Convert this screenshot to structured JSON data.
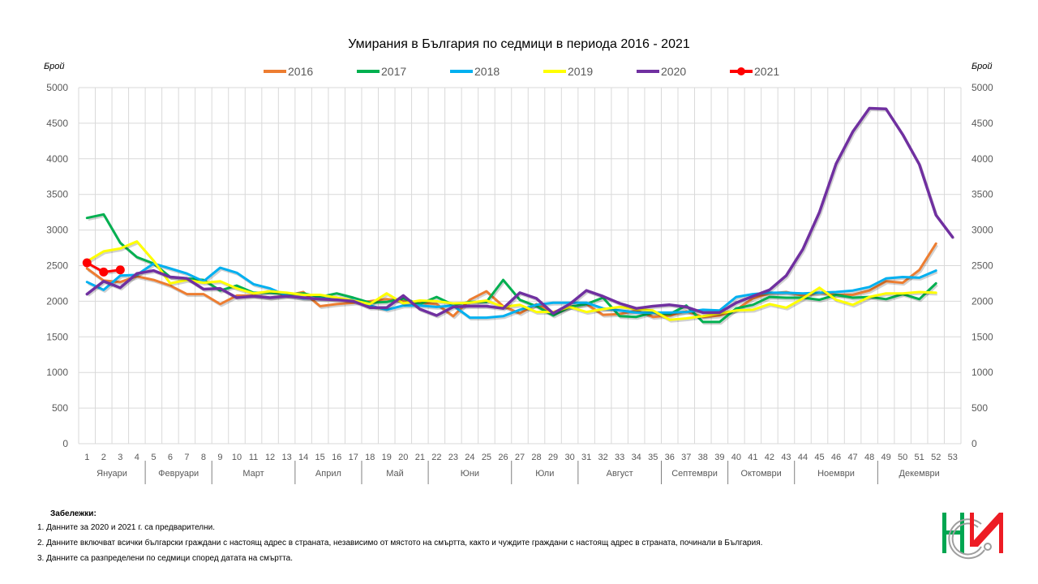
{
  "chart_data": {
    "type": "line",
    "title": "Умирания в България по седмици в периода 2016 - 2021",
    "ylabel_left": "Брой",
    "ylabel_right": "Брой",
    "ylim": [
      0,
      5000
    ],
    "yticks": [
      0,
      500,
      1000,
      1500,
      2000,
      2500,
      3000,
      3500,
      4000,
      4500,
      5000
    ],
    "grid": true,
    "legend_position": "top",
    "x": [
      1,
      2,
      3,
      4,
      5,
      6,
      7,
      8,
      9,
      10,
      11,
      12,
      13,
      14,
      15,
      16,
      17,
      18,
      19,
      20,
      21,
      22,
      23,
      24,
      25,
      26,
      27,
      28,
      29,
      30,
      31,
      32,
      33,
      34,
      35,
      36,
      37,
      38,
      39,
      40,
      41,
      42,
      43,
      44,
      45,
      46,
      47,
      48,
      49,
      50,
      51,
      52,
      53
    ],
    "months": [
      {
        "label": "Януари",
        "start": 1,
        "end": 4
      },
      {
        "label": "Февруари",
        "start": 5,
        "end": 8
      },
      {
        "label": "Март",
        "start": 9,
        "end": 13
      },
      {
        "label": "Април",
        "start": 14,
        "end": 17
      },
      {
        "label": "Май",
        "start": 18,
        "end": 21
      },
      {
        "label": "Юни",
        "start": 22,
        "end": 26
      },
      {
        "label": "Юли",
        "start": 27,
        "end": 30
      },
      {
        "label": "Август",
        "start": 31,
        "end": 35
      },
      {
        "label": "Септември",
        "start": 36,
        "end": 39
      },
      {
        "label": "Октомври",
        "start": 40,
        "end": 43
      },
      {
        "label": "Ноември",
        "start": 44,
        "end": 48
      },
      {
        "label": "Декември",
        "start": 49,
        "end": 53
      }
    ],
    "series": [
      {
        "name": "2016",
        "color": "#ED7D31",
        "markers": false,
        "values": [
          2460,
          2290,
          2270,
          2350,
          2300,
          2220,
          2100,
          2100,
          1960,
          2080,
          2080,
          2050,
          2080,
          2130,
          1930,
          1960,
          1980,
          2000,
          2030,
          2000,
          1980,
          1960,
          1790,
          2020,
          2140,
          1930,
          1830,
          1960,
          1840,
          1920,
          1960,
          1810,
          1820,
          1870,
          1780,
          1800,
          1860,
          1780,
          1800,
          1880,
          2040,
          2110,
          2130,
          2080,
          2120,
          2090,
          2090,
          2150,
          2280,
          2260,
          2440,
          2810,
          null
        ]
      },
      {
        "name": "2017",
        "color": "#00B050",
        "markers": false,
        "values": [
          3170,
          3220,
          2820,
          2620,
          2530,
          2340,
          2320,
          2300,
          2150,
          2220,
          2120,
          2120,
          2100,
          2110,
          2060,
          2110,
          2050,
          1980,
          1990,
          2040,
          1960,
          2060,
          1950,
          1990,
          1990,
          2300,
          2020,
          1930,
          1800,
          1920,
          1960,
          2050,
          1790,
          1780,
          1840,
          1820,
          1940,
          1710,
          1710,
          1900,
          1950,
          2060,
          2050,
          2050,
          2020,
          2090,
          2050,
          2060,
          2030,
          2100,
          2030,
          2250,
          null
        ]
      },
      {
        "name": "2018",
        "color": "#00B0F0",
        "markers": false,
        "values": [
          2270,
          2160,
          2360,
          2370,
          2530,
          2460,
          2390,
          2280,
          2470,
          2400,
          2240,
          2180,
          2080,
          2040,
          2040,
          2030,
          2020,
          1940,
          1880,
          1940,
          1940,
          1920,
          1940,
          1770,
          1770,
          1790,
          1880,
          1950,
          1980,
          1980,
          1980,
          1900,
          1870,
          1840,
          1840,
          1840,
          1850,
          1880,
          1870,
          2060,
          2100,
          2120,
          2120,
          2110,
          2120,
          2130,
          2150,
          2200,
          2320,
          2340,
          2330,
          2430,
          null
        ]
      },
      {
        "name": "2019",
        "color": "#FFFF00",
        "markers": false,
        "values": [
          2560,
          2700,
          2740,
          2840,
          2570,
          2250,
          2300,
          2260,
          2280,
          2180,
          2110,
          2140,
          2120,
          2090,
          2090,
          2050,
          2010,
          1960,
          2110,
          1970,
          2010,
          2000,
          1970,
          1980,
          2010,
          1920,
          1950,
          1850,
          1850,
          1920,
          1850,
          1890,
          1920,
          1890,
          1870,
          1740,
          1760,
          1790,
          1830,
          1870,
          1880,
          1960,
          1910,
          2040,
          2190,
          2020,
          1950,
          2060,
          2110,
          2110,
          2130,
          2120,
          null
        ]
      },
      {
        "name": "2020",
        "color": "#7030A0",
        "markers": false,
        "values": [
          2100,
          2280,
          2190,
          2390,
          2430,
          2340,
          2320,
          2170,
          2180,
          2050,
          2070,
          2050,
          2070,
          2050,
          2030,
          2020,
          2000,
          1910,
          1910,
          2080,
          1890,
          1800,
          1920,
          1930,
          1930,
          1900,
          2120,
          2040,
          1830,
          1960,
          2150,
          2070,
          1970,
          1900,
          1930,
          1950,
          1920,
          1840,
          1840,
          1980,
          2070,
          2160,
          2360,
          2730,
          3250,
          3930,
          4380,
          4710,
          4700,
          4340,
          3920,
          3210,
          2900
        ]
      },
      {
        "name": "2021",
        "color": "#FF0000",
        "markers": true,
        "values": [
          2540,
          2410,
          2440
        ]
      }
    ],
    "notes_header": "Забележки:",
    "notes": [
      "1. Данните за 2020 и 2021 г. са предварителни.",
      "2. Данните включват всички български граждани с настоящ адрес в страната, независимо от мястото на смъртта, както и чуждите граждани с настоящ адрес в страната, починали в България.",
      "3. Данните са разпределени по седмици според датата на смъртта."
    ]
  },
  "logo": {
    "name": "НСИ",
    "colors": [
      "#00A651",
      "#ED1C24",
      "#9E9E9E"
    ]
  }
}
